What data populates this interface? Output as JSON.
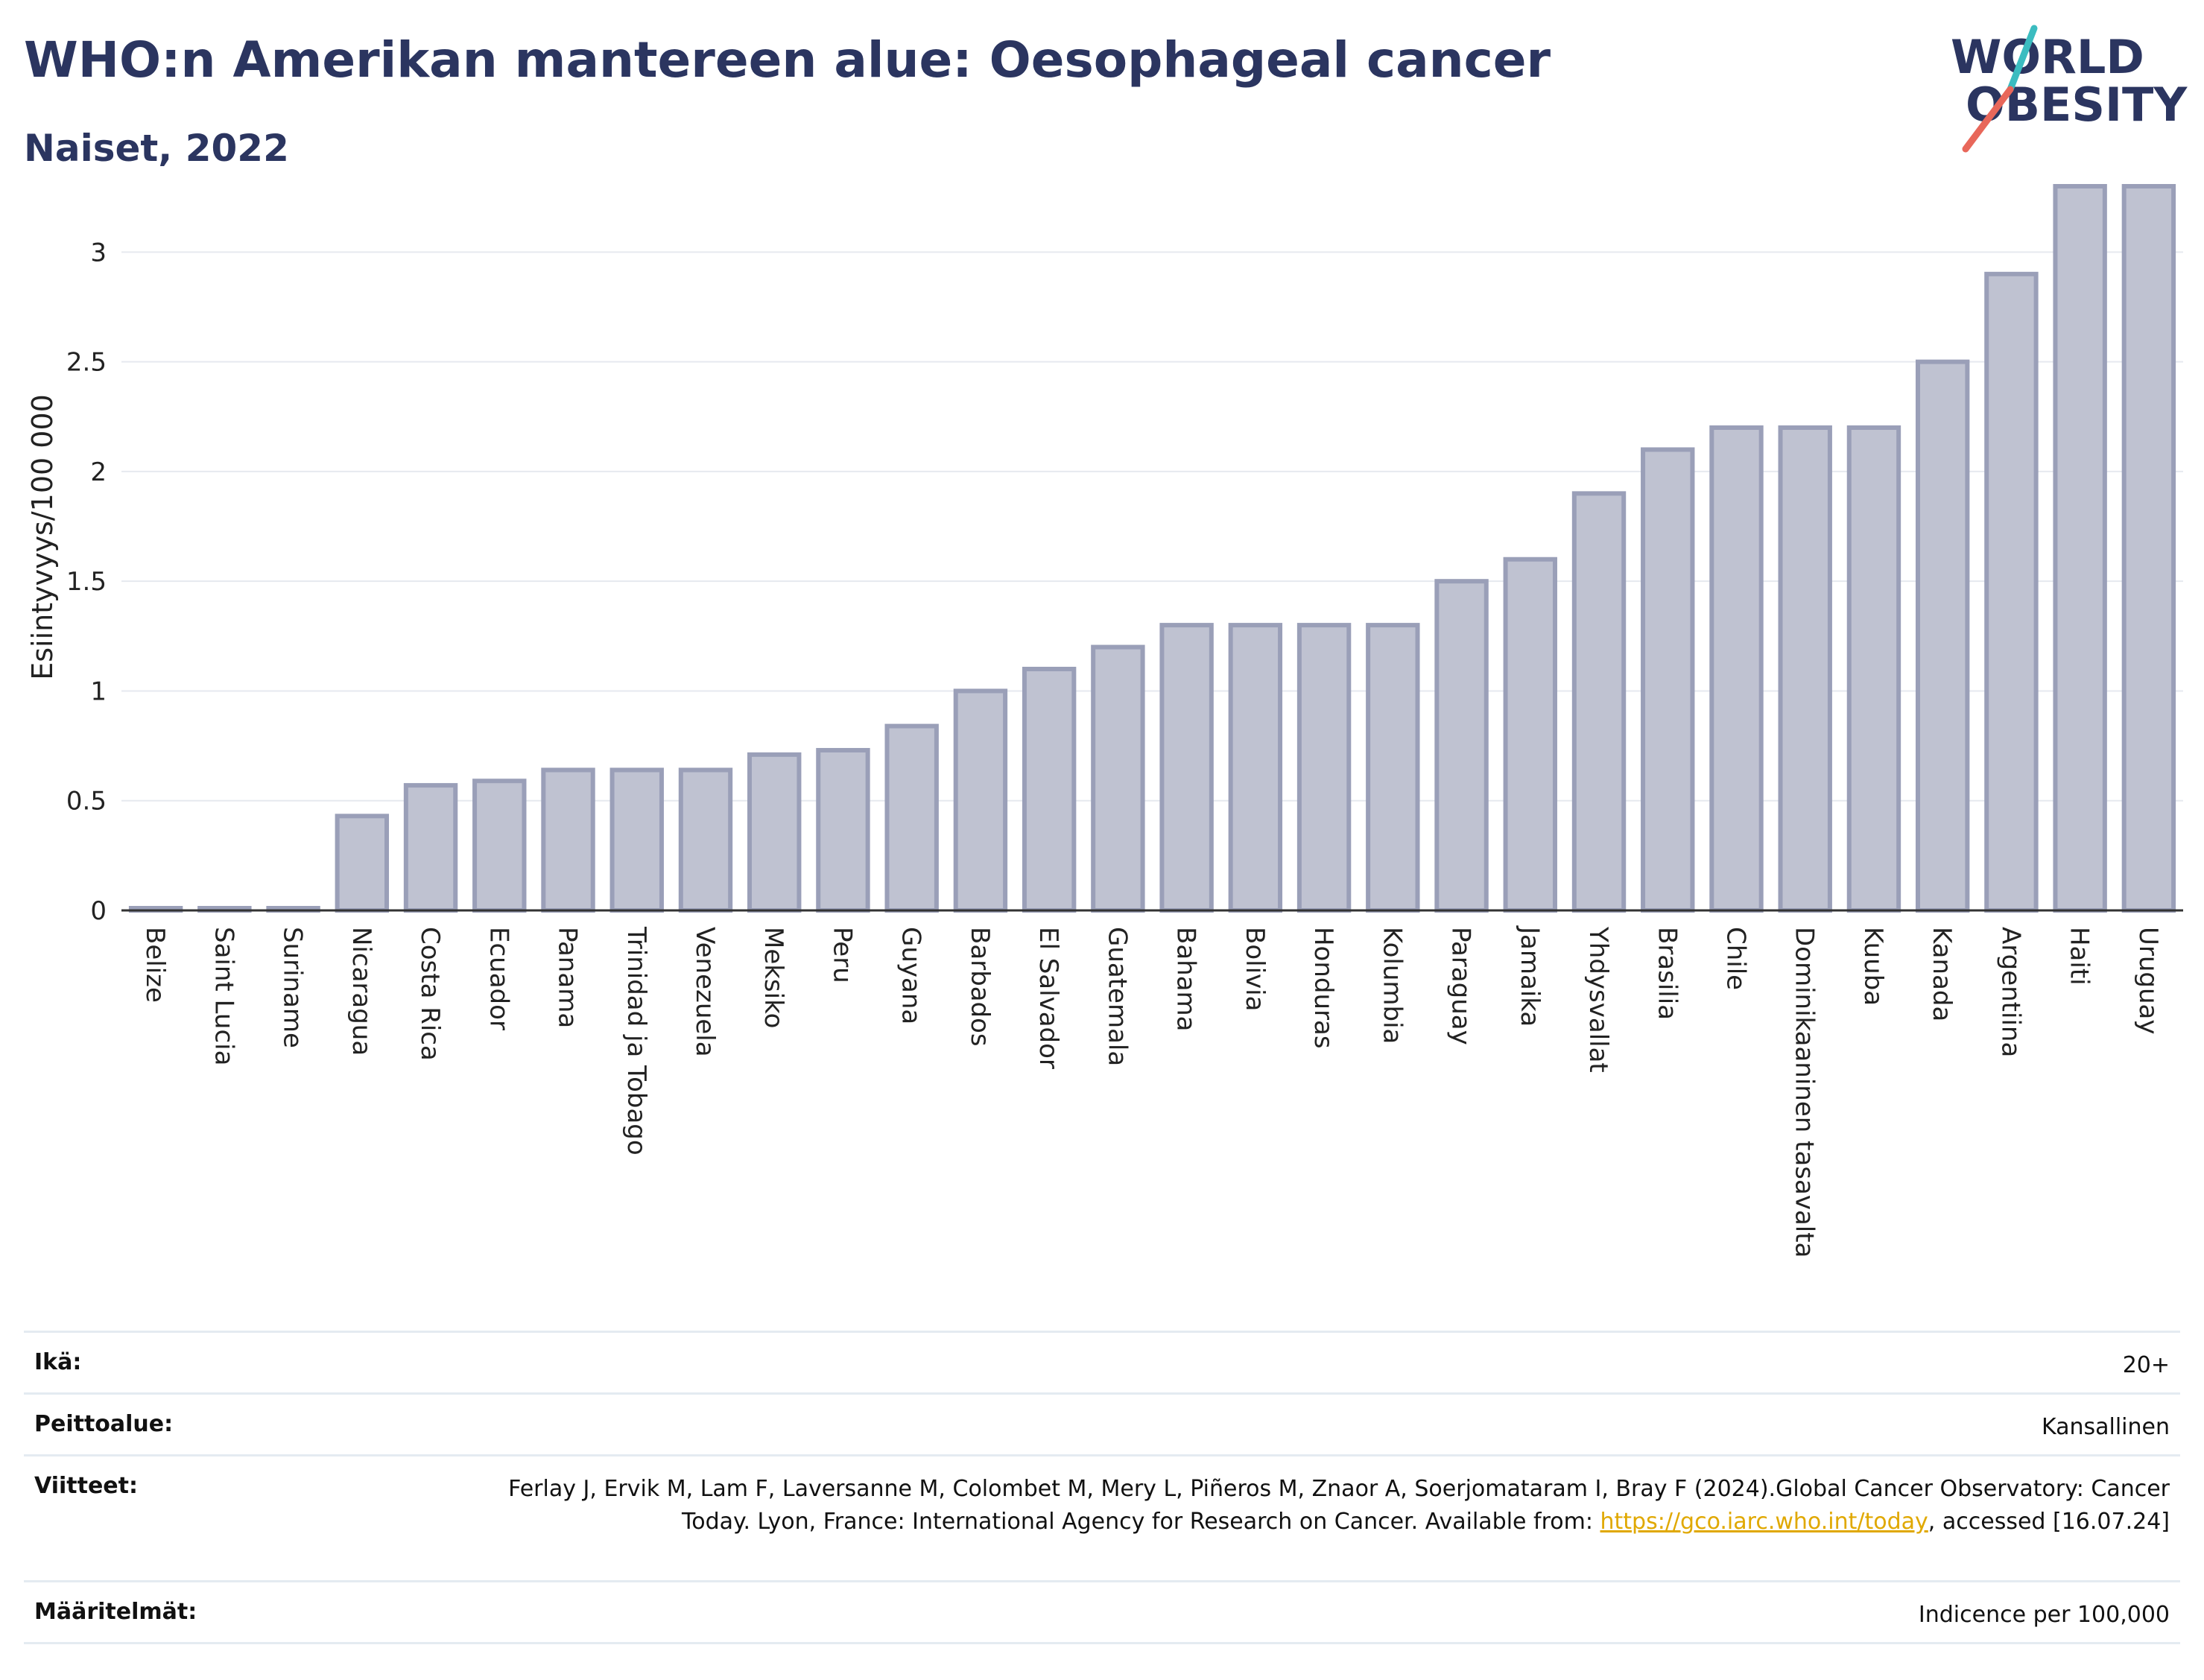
{
  "header": {
    "title": "WHO:n Amerikan mantereen alue: Oesophageal cancer",
    "subtitle": "Naiset, 2022"
  },
  "logo": {
    "line1": "WORLD",
    "line2": "OBESITY"
  },
  "chart_data": {
    "type": "bar",
    "ylabel": "Esiintyvyys/100 000",
    "xlabel": "",
    "ylim": [
      0,
      3.3
    ],
    "yticks": [
      0,
      0.5,
      1,
      1.5,
      2,
      2.5,
      3
    ],
    "grid": true,
    "bar_color": "#bfc2d1",
    "bar_edge_color": "#9a9fb8",
    "categories": [
      "Belize",
      "Saint Lucia",
      "Suriname",
      "Nicaragua",
      "Costa Rica",
      "Ecuador",
      "Panama",
      "Trinidad ja Tobago",
      "Venezuela",
      "Meksiko",
      "Peru",
      "Guyana",
      "Barbados",
      "El Salvador",
      "Guatemala",
      "Bahama",
      "Bolivia",
      "Honduras",
      "Kolumbia",
      "Paraguay",
      "Jamaika",
      "Yhdysvallat",
      "Brasilia",
      "Chile",
      "Dominikaaninen tasavalta",
      "Kuuba",
      "Kanada",
      "Argentiina",
      "Haiti",
      "Uruguay"
    ],
    "values": [
      0,
      0,
      0,
      0.43,
      0.57,
      0.59,
      0.64,
      0.64,
      0.64,
      0.71,
      0.73,
      0.84,
      1.0,
      1.1,
      1.2,
      1.3,
      1.3,
      1.3,
      1.3,
      1.5,
      1.6,
      1.9,
      2.1,
      2.2,
      2.2,
      2.2,
      2.5,
      2.9,
      3.3,
      3.3
    ]
  },
  "meta": {
    "rows": [
      {
        "label": "Ikä:",
        "value": "20+"
      },
      {
        "label": "Peittoalue:",
        "value": "Kansallinen"
      },
      {
        "label": "Viitteet:",
        "value_before": "Ferlay J, Ervik M, Lam F, Laversanne M, Colombet M, Mery L, Piñeros M, Znaor A, Soerjomataram I, Bray F (2024).Global Cancer Observatory: Cancer Today. Lyon, France: International Agency for Research on Cancer. Available from: ",
        "link": "https://gco.iarc.who.int/today",
        "value_after": ", accessed [16.07.24]"
      },
      {
        "label": "Määritelmät:",
        "value": "Indicence per 100,000"
      }
    ]
  }
}
